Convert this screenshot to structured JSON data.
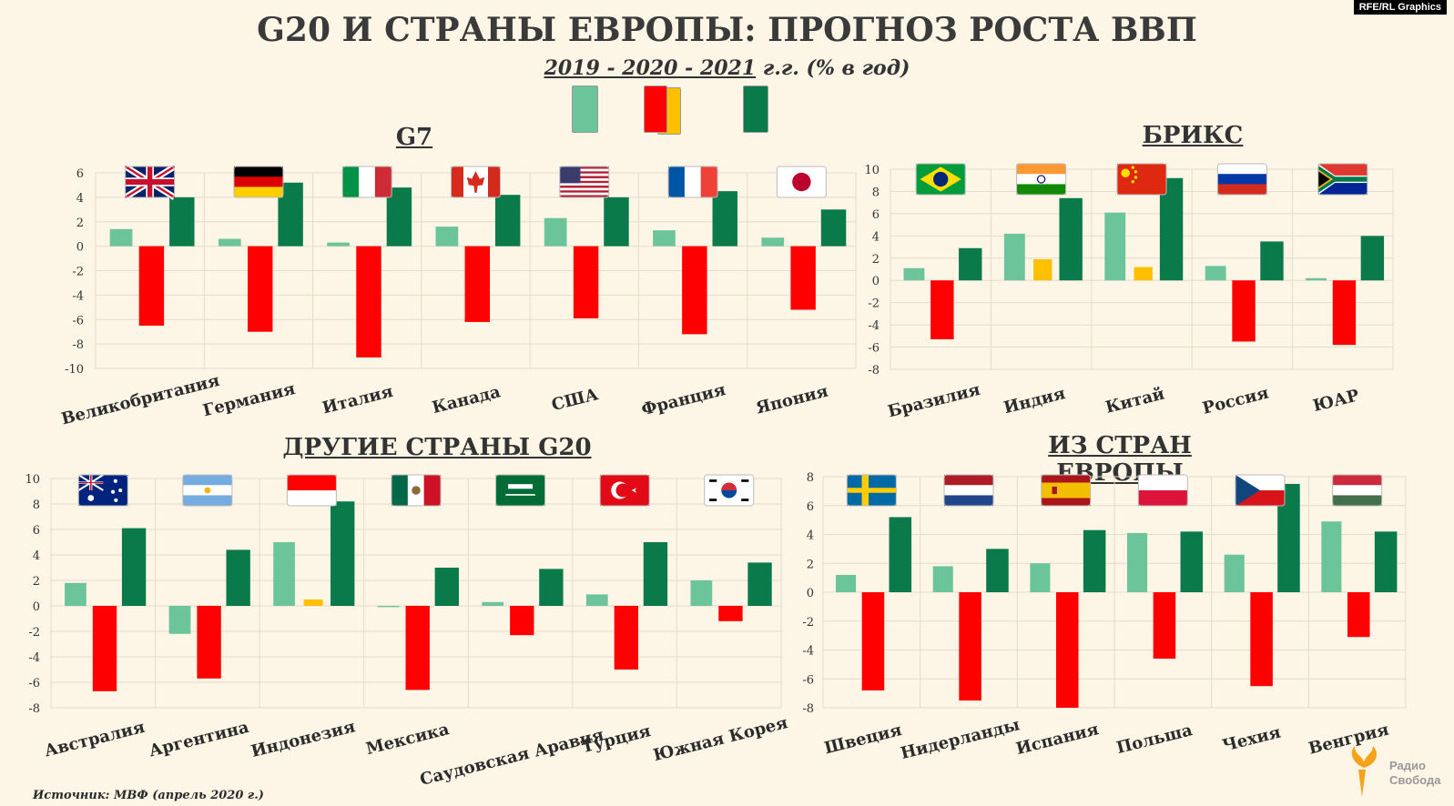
{
  "header": {
    "title": "G20 И СТРАНЫ ЕВРОПЫ: ПРОГНОЗ РОСТА ВВП",
    "subtitle_years": "2019  -  2020  -  2021",
    "subtitle_suffix": " г.г. (% в год)",
    "credit": "RFE/RL Graphics"
  },
  "legend": {
    "colors": [
      "#6cc49a",
      "#ff0000",
      "#ffc000",
      "#0a7a4a"
    ]
  },
  "footer": {
    "source": "Источник: МВФ (апрель 2020 г.)",
    "logo_line1": "Радио",
    "logo_line2": "Свобода"
  },
  "chart_data": [
    {
      "type": "bar",
      "title": "G7",
      "categories": [
        "Великобритания",
        "Германия",
        "Италия",
        "Канада",
        "США",
        "Франция",
        "Япония"
      ],
      "series": [
        {
          "values": [
            1.4,
            0.6,
            0.3,
            1.6,
            2.3,
            1.3,
            0.7
          ],
          "color": "#6cc49a"
        },
        {
          "values": [
            -6.5,
            -7.0,
            -9.1,
            -6.2,
            -5.9,
            -7.2,
            -5.2
          ],
          "color": "#ff0000"
        },
        {
          "values": [
            4.0,
            5.2,
            4.8,
            4.2,
            4.0,
            4.5,
            3.0
          ],
          "color": "#0a7a4a"
        }
      ],
      "ylim": [
        -10,
        6
      ],
      "yticks": [
        6,
        4,
        2,
        0,
        -2,
        -4,
        -6,
        -8,
        -10
      ],
      "flags": [
        "uk",
        "de",
        "it",
        "ca",
        "us",
        "fr",
        "jp"
      ]
    },
    {
      "type": "bar",
      "title": "БРИКС",
      "categories": [
        "Бразилия",
        "Индия",
        "Китай",
        "Россия",
        "ЮАР"
      ],
      "series": [
        {
          "values": [
            1.1,
            4.2,
            6.1,
            1.3,
            0.2
          ],
          "color": "#6cc49a"
        },
        {
          "values": [
            -5.3,
            1.9,
            1.2,
            -5.5,
            -5.8
          ],
          "color": "#ff0000",
          "positive_color": "#ffc000"
        },
        {
          "values": [
            2.9,
            7.4,
            9.2,
            3.5,
            4.0
          ],
          "color": "#0a7a4a"
        }
      ],
      "ylim": [
        -8,
        10
      ],
      "yticks": [
        10,
        8,
        6,
        4,
        2,
        0,
        -2,
        -4,
        -6,
        -8
      ],
      "flags": [
        "br",
        "in",
        "cn",
        "ru",
        "za"
      ]
    },
    {
      "type": "bar",
      "title": "ДРУГИЕ СТРАНЫ G20",
      "categories": [
        "Австралия",
        "Аргентина",
        "Индонезия",
        "Мексика",
        "Саудовская Аравия",
        "Турция",
        "Южная Корея"
      ],
      "series": [
        {
          "values": [
            1.8,
            -2.2,
            5.0,
            -0.1,
            0.3,
            0.9,
            2.0
          ],
          "color": "#6cc49a"
        },
        {
          "values": [
            -6.7,
            -5.7,
            0.5,
            -6.6,
            -2.3,
            -5.0,
            -1.2
          ],
          "color": "#ff0000",
          "positive_color": "#ffc000"
        },
        {
          "values": [
            6.1,
            4.4,
            8.2,
            3.0,
            2.9,
            5.0,
            3.4
          ],
          "color": "#0a7a4a"
        }
      ],
      "ylim": [
        -8,
        10
      ],
      "yticks": [
        10,
        8,
        6,
        4,
        2,
        0,
        -2,
        -4,
        -6,
        -8
      ],
      "flags": [
        "au",
        "ar",
        "id",
        "mx",
        "sa",
        "tr",
        "kr"
      ]
    },
    {
      "type": "bar",
      "title": "ИЗ СТРАН ЕВРОПЫ",
      "categories": [
        "Швеция",
        "Нидерланды",
        "Испания",
        "Польша",
        "Чехия",
        "Венгрия"
      ],
      "series": [
        {
          "values": [
            1.2,
            1.8,
            2.0,
            4.1,
            2.6,
            4.9
          ],
          "color": "#6cc49a"
        },
        {
          "values": [
            -6.8,
            -7.5,
            -8.0,
            -4.6,
            -6.5,
            -3.1
          ],
          "color": "#ff0000"
        },
        {
          "values": [
            5.2,
            3.0,
            4.3,
            4.2,
            7.5,
            4.2
          ],
          "color": "#0a7a4a"
        }
      ],
      "ylim": [
        -8,
        8
      ],
      "yticks": [
        8,
        6,
        4,
        2,
        0,
        -2,
        -4,
        -6,
        -8
      ],
      "flags": [
        "se",
        "nl",
        "es",
        "pl",
        "cz",
        "hu"
      ]
    }
  ]
}
